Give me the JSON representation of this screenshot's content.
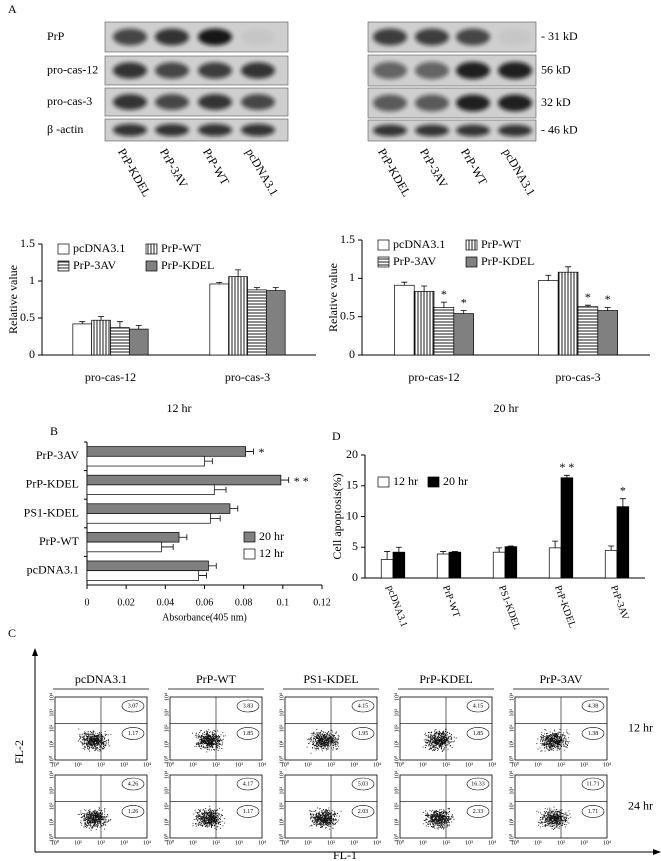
{
  "panel_labels": [
    "A",
    "B",
    "C",
    "D"
  ],
  "blots": {
    "rows": [
      "PrP",
      "pro-cas-12",
      "pro-cas-3",
      "β -actin"
    ],
    "lanes": [
      "PrP-KDEL",
      "PrP-3AV",
      "PrP-WT",
      "pcDNA3.1"
    ],
    "markers": [
      "- 31 kD",
      "56 kD",
      "32 kD",
      "- 46 kD"
    ]
  },
  "chart_data": [
    {
      "type": "bar",
      "orientation": "vertical",
      "title": "12 hr",
      "ylabel": "Relative value",
      "categories": [
        "pro-cas-12",
        "pro-cas-3"
      ],
      "series": [
        {
          "name": "pcDNA3.1",
          "color": "#ffffff",
          "values": [
            0.42,
            0.96
          ],
          "errors": [
            0.03,
            0.02
          ]
        },
        {
          "name": "PrP-WT",
          "color": "#ffffff",
          "hatch": "vertical",
          "values": [
            0.47,
            1.06
          ],
          "errors": [
            0.05,
            0.09
          ]
        },
        {
          "name": "PrP-3AV",
          "color": "#ffffff",
          "hatch": "horizontal",
          "values": [
            0.37,
            0.88
          ],
          "errors": [
            0.08,
            0.03
          ]
        },
        {
          "name": "PrP-KDEL",
          "color": "#808080",
          "values": [
            0.35,
            0.87
          ],
          "errors": [
            0.05,
            0.04
          ]
        }
      ],
      "ylim": [
        0,
        1.5
      ],
      "yticks": [
        0,
        0.5,
        1,
        1.5
      ],
      "legend": "top"
    },
    {
      "type": "bar",
      "orientation": "vertical",
      "title": "20 hr",
      "ylabel": "Relative value",
      "categories": [
        "pro-cas-12",
        "pro-cas-3"
      ],
      "series": [
        {
          "name": "pcDNA3.1",
          "color": "#ffffff",
          "values": [
            0.91,
            0.97
          ],
          "errors": [
            0.04,
            0.07
          ]
        },
        {
          "name": "PrP-WT",
          "color": "#ffffff",
          "hatch": "vertical",
          "values": [
            0.83,
            1.08
          ],
          "errors": [
            0.07,
            0.07
          ]
        },
        {
          "name": "PrP-3AV",
          "color": "#ffffff",
          "hatch": "horizontal",
          "values": [
            0.62,
            0.63
          ],
          "errors": [
            0.07,
            0.02
          ],
          "significance": [
            "*",
            "*"
          ]
        },
        {
          "name": "PrP-KDEL",
          "color": "#808080",
          "values": [
            0.54,
            0.58
          ],
          "errors": [
            0.04,
            0.04
          ],
          "significance": [
            "*",
            "*"
          ]
        }
      ],
      "ylim": [
        0,
        1.5
      ],
      "yticks": [
        0,
        0.5,
        1,
        1.5
      ],
      "legend": "top"
    },
    {
      "type": "bar",
      "orientation": "horizontal",
      "xlabel": "Absorbance(405 nm)",
      "categories": [
        "PrP-3AV",
        "PrP-KDEL",
        "PS1-KDEL",
        "PrP-WT",
        "pcDNA3.1"
      ],
      "series": [
        {
          "name": "20 hr",
          "color": "#808080",
          "values": [
            0.081,
            0.099,
            0.073,
            0.047,
            0.062
          ],
          "errors": [
            0.004,
            0.004,
            0.004,
            0.004,
            0.004
          ],
          "significance": [
            "*",
            "* *",
            null,
            null,
            null
          ]
        },
        {
          "name": "12 hr",
          "color": "#ffffff",
          "values": [
            0.06,
            0.065,
            0.063,
            0.038,
            0.057
          ],
          "errors": [
            0.004,
            0.006,
            0.005,
            0.006,
            0.004
          ]
        }
      ],
      "xlim": [
        0,
        0.12
      ],
      "xticks": [
        0,
        0.02,
        0.04,
        0.06,
        0.08,
        0.1,
        0.12
      ],
      "legend": "lower right"
    },
    {
      "type": "bar",
      "orientation": "vertical",
      "ylabel": "Cell apoptosis(%)",
      "categories": [
        "pcDNA3.1",
        "PrP-WT",
        "PS1-KDEL",
        "PrP-KDEL",
        "PrP-3AV"
      ],
      "series": [
        {
          "name": "12 hr",
          "color": "#ffffff",
          "values": [
            3,
            3.9,
            4.2,
            4.9,
            4.5
          ],
          "errors": [
            1.3,
            0.4,
            0.7,
            1.1,
            0.7
          ]
        },
        {
          "name": "20 hr",
          "color": "#000000",
          "values": [
            4.2,
            4.2,
            5.1,
            16.3,
            11.6
          ],
          "errors": [
            0.8,
            0.1,
            0.1,
            0.4,
            1.3
          ],
          "significance": [
            null,
            null,
            null,
            "* *",
            "*"
          ]
        }
      ],
      "ylim": [
        0,
        20
      ],
      "yticks": [
        0,
        5,
        10,
        15,
        20
      ],
      "legend": "top left"
    }
  ],
  "flow": {
    "columns": [
      "pcDNA3.1",
      "PrP-WT",
      "PS1-KDEL",
      "PrP-KDEL",
      "PrP-3AV"
    ],
    "rows": [
      "12 hr",
      "24 hr"
    ],
    "upper_right": [
      [
        3.07,
        3.83,
        4.15,
        4.15,
        4.38
      ],
      [
        4.26,
        4.17,
        5.03,
        16.33,
        11.71
      ]
    ],
    "lower_right": [
      [
        1.17,
        1.85,
        1.95,
        1.85,
        1.38
      ],
      [
        1.26,
        1.17,
        2.03,
        2.33,
        1.71
      ]
    ],
    "axis_ticks": [
      "10⁰",
      "10¹",
      "10²",
      "10³",
      "10⁴"
    ],
    "x_label": "FL-1",
    "y_label": "FL-2"
  }
}
